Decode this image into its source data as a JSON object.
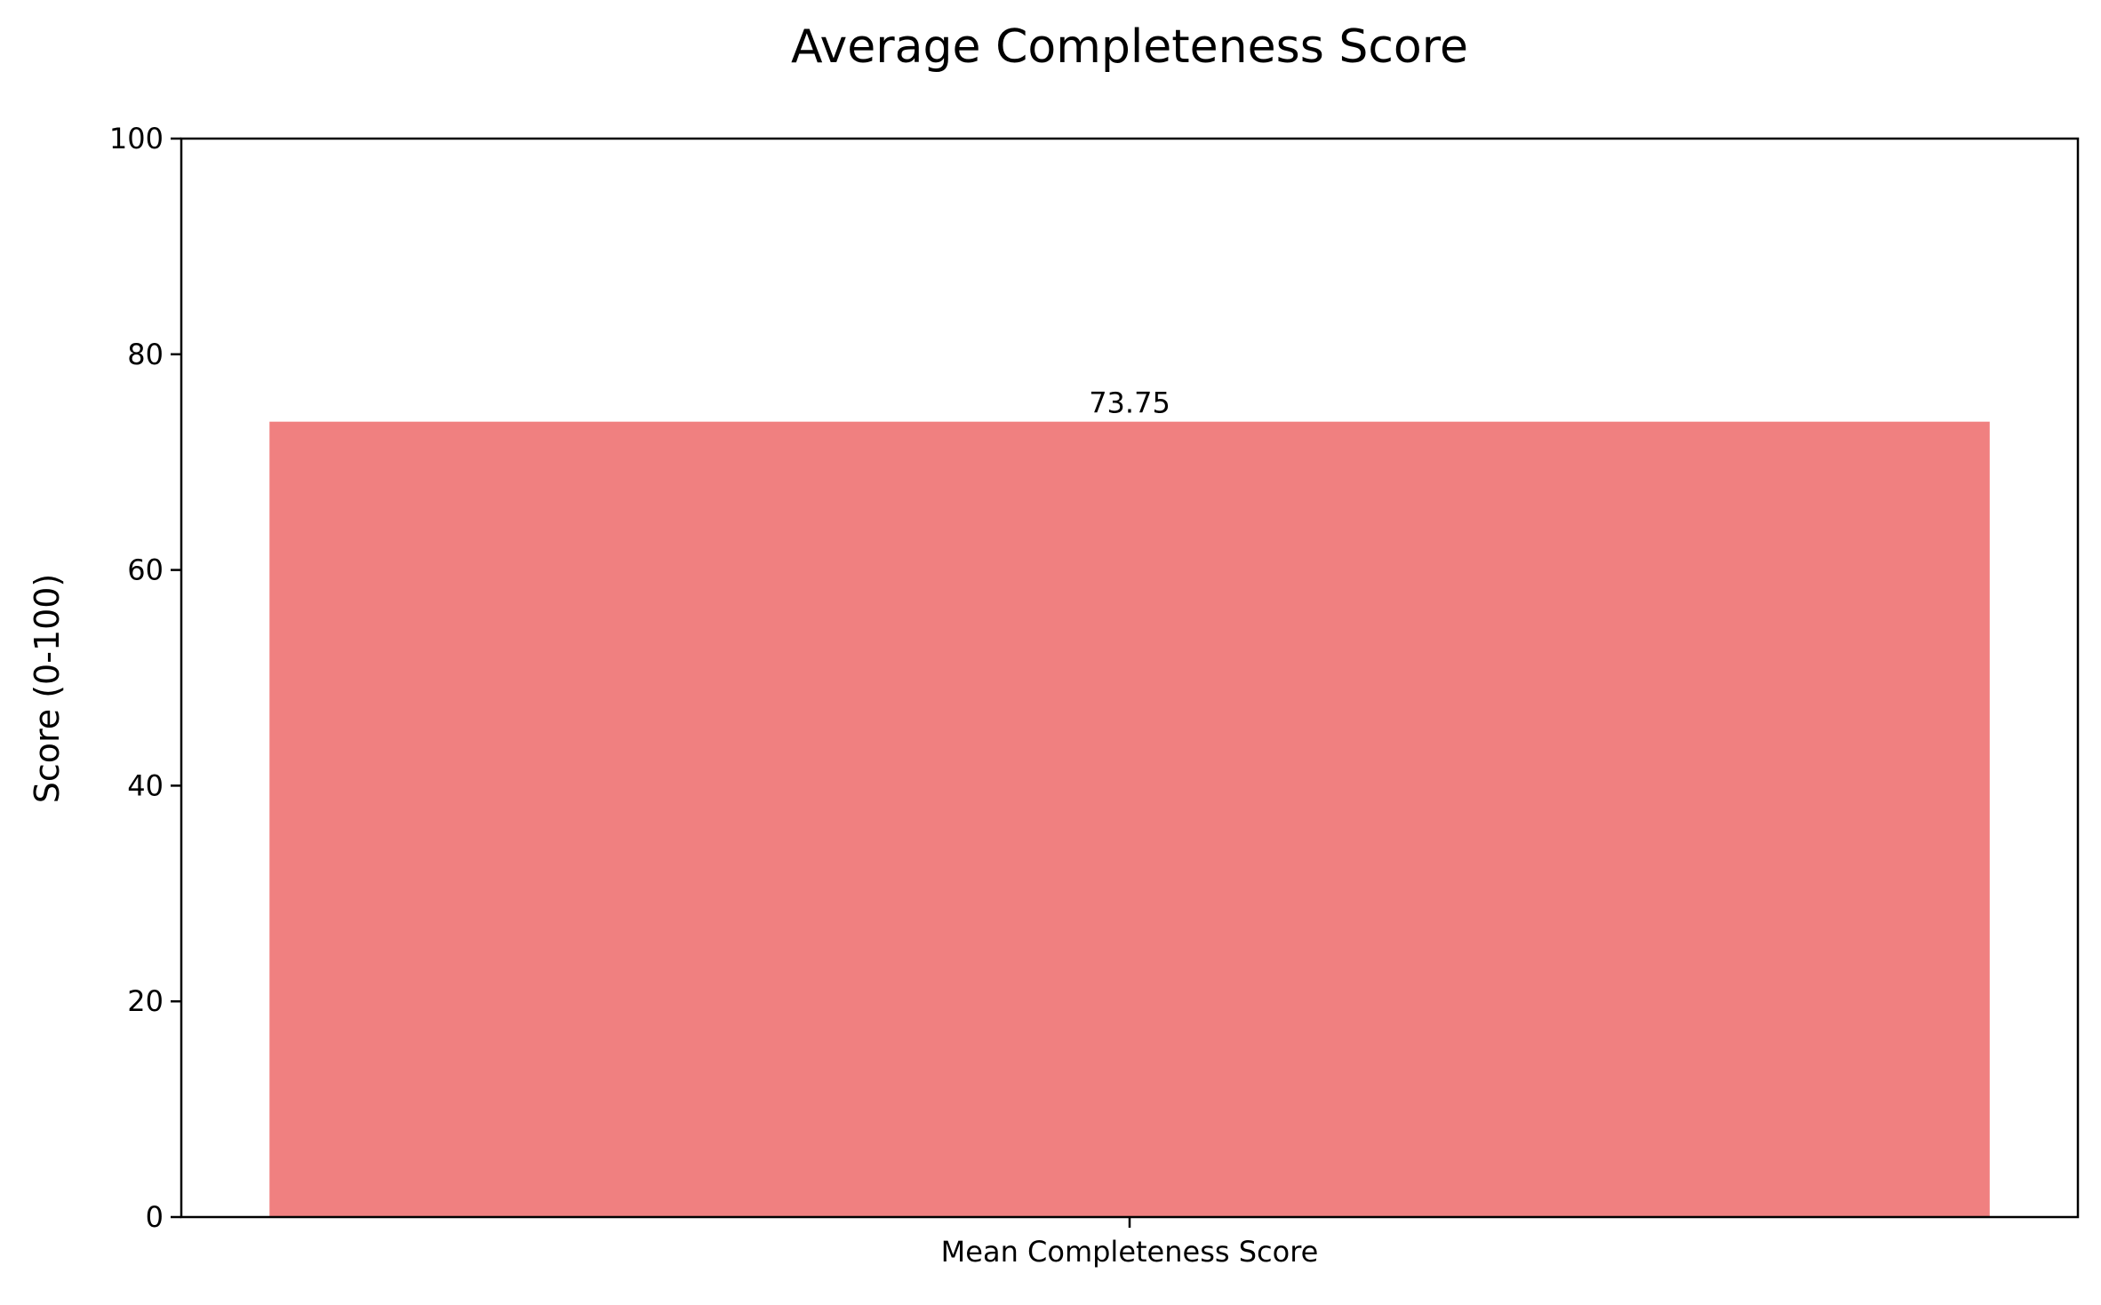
{
  "chart_data": {
    "type": "bar",
    "title": "Average Completeness Score",
    "xlabel": "",
    "ylabel": "Score (0-100)",
    "categories": [
      "Mean Completeness Score"
    ],
    "values": [
      73.75
    ],
    "data_labels": [
      "73.75"
    ],
    "ylim": [
      0,
      100
    ],
    "yticks": [
      0,
      20,
      40,
      60,
      80,
      100
    ],
    "grid": false,
    "legend": "none",
    "bar_color": "#F08080"
  }
}
